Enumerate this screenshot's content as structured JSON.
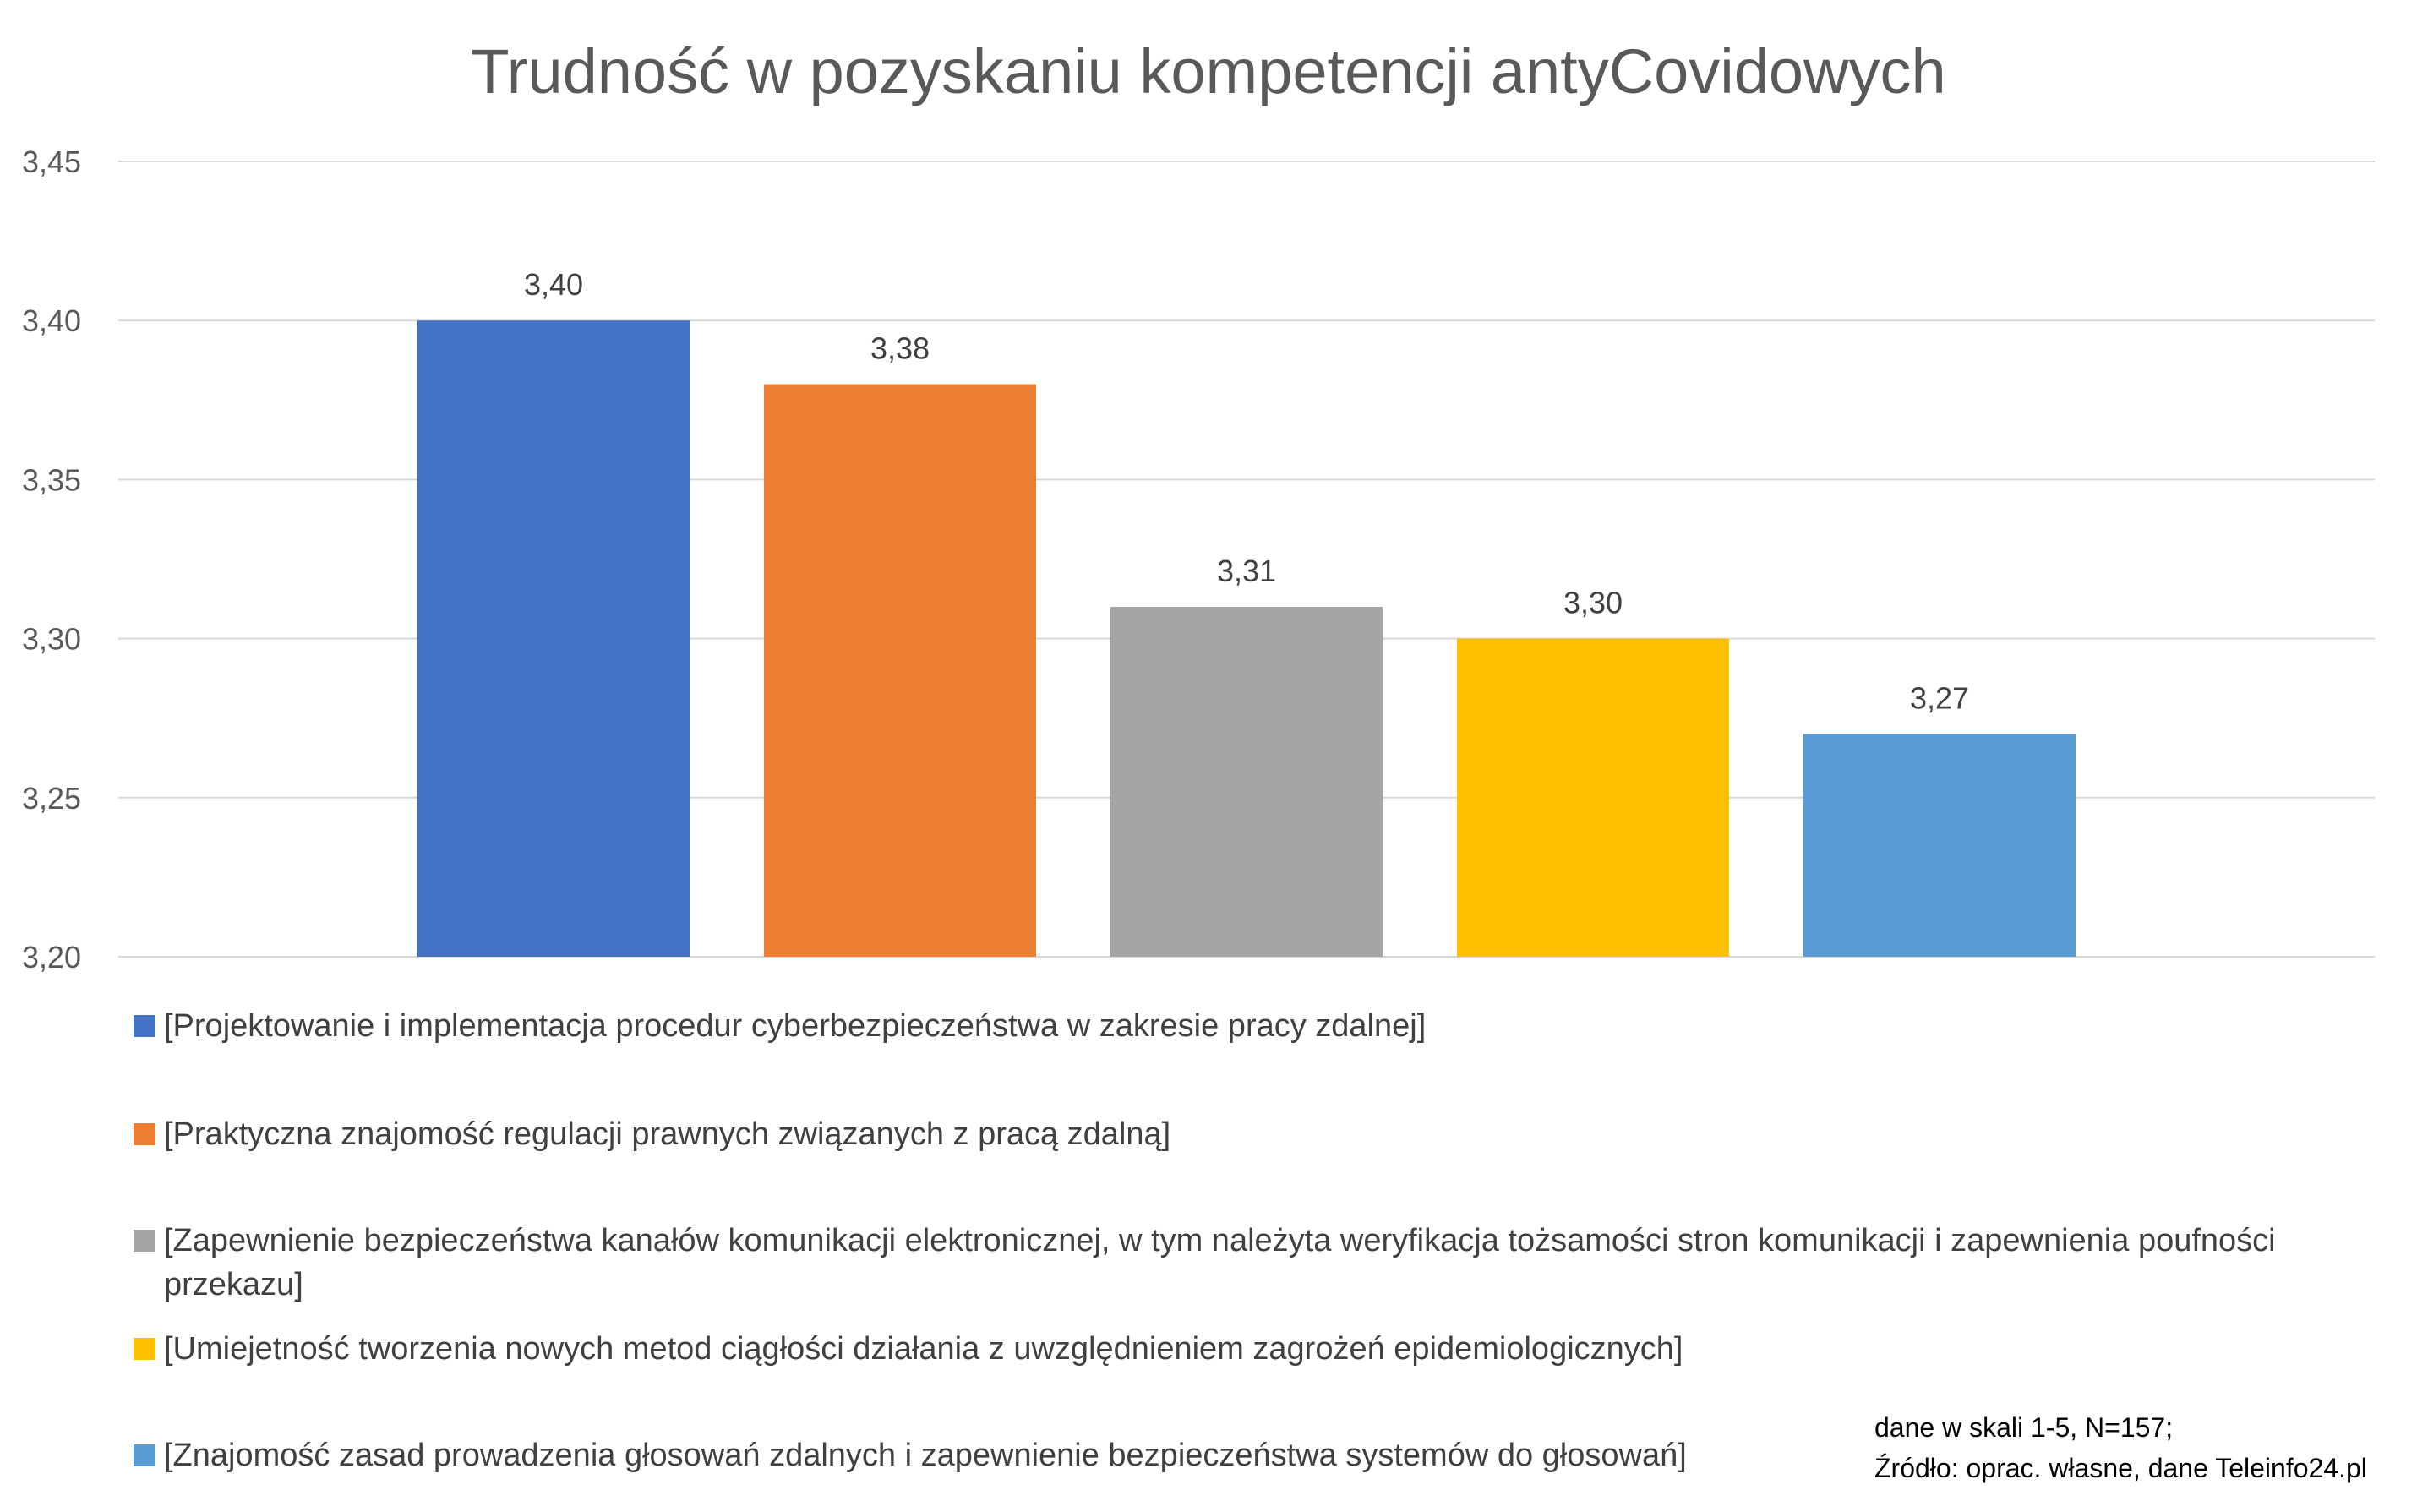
{
  "chart_data": {
    "type": "bar",
    "title": "Trudność w pozyskaniu kompetencji antyCovidowych",
    "xlabel": "",
    "ylabel": "",
    "ylim": [
      3.2,
      3.45
    ],
    "y_ticks": [
      "3,20",
      "3,25",
      "3,30",
      "3,35",
      "3,40",
      "3,45"
    ],
    "y_tick_values": [
      3.2,
      3.25,
      3.3,
      3.35,
      3.4,
      3.45
    ],
    "grid": true,
    "legend_position": "bottom",
    "series": [
      {
        "name": "[Projektowanie i implementacja procedur cyberbezpieczeństwa w zakresie pracy zdalnej]",
        "value": 3.4,
        "label": "3,40",
        "color": "#4472C4"
      },
      {
        "name": "[Praktyczna znajomość regulacji prawnych związanych z pracą zdalną]",
        "value": 3.38,
        "label": "3,38",
        "color": "#ED7D31"
      },
      {
        "name": "[Zapewnienie bezpieczeństwa kanałów komunikacji elektronicznej, w tym należyta weryfikacja tożsamości stron komunikacji i zapewnienia poufności przekazu]",
        "value": 3.31,
        "label": "3,31",
        "color": "#A5A5A5"
      },
      {
        "name": "[Umiejetność tworzenia nowych metod ciągłości działania z uwzględnieniem zagrożeń epidemiologicznych]",
        "value": 3.3,
        "label": "3,30",
        "color": "#FFC000"
      },
      {
        "name": "[Znajomość zasad prowadzenia głosowań zdalnych i zapewnienie bezpieczeństwa systemów do głosowań]",
        "value": 3.27,
        "label": "3,27",
        "color": "#5B9BD5"
      }
    ]
  },
  "source_note": {
    "line1": "dane w skali 1-5, N=157;",
    "line2": "Źródło: oprac. własne, dane Teleinfo24.pl"
  }
}
